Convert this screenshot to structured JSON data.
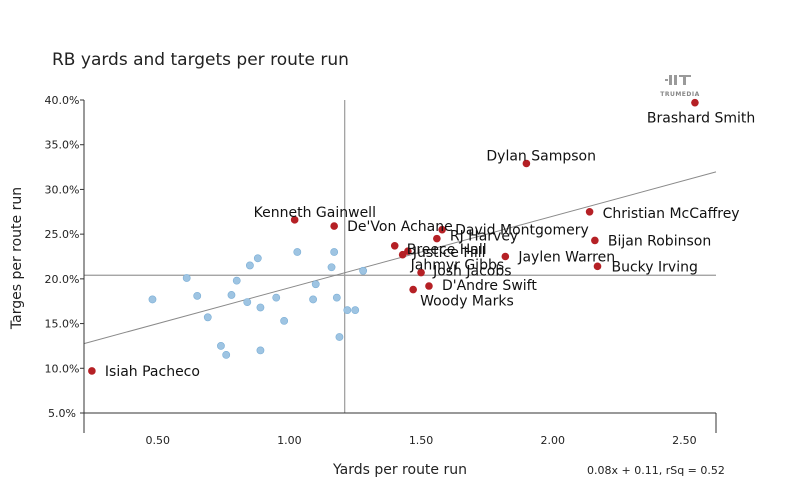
{
  "chart_data": {
    "type": "scatter",
    "title": "RB yards and targets per route run",
    "xlabel": "Yards per route run",
    "ylabel": "Targes per route run",
    "xlim": [
      0.22,
      2.62
    ],
    "ylim": [
      0.05,
      0.4
    ],
    "xticks": [
      {
        "v": 0.5,
        "label": "0.50"
      },
      {
        "v": 1.0,
        "label": "1.00"
      },
      {
        "v": 1.5,
        "label": "1.50"
      },
      {
        "v": 2.0,
        "label": "2.00"
      },
      {
        "v": 2.5,
        "label": "2.50"
      }
    ],
    "yticks": [
      {
        "v": 0.05,
        "label": "5.0%"
      },
      {
        "v": 0.1,
        "label": "10.0%"
      },
      {
        "v": 0.15,
        "label": "15.0%"
      },
      {
        "v": 0.2,
        "label": "20.0%"
      },
      {
        "v": 0.25,
        "label": "25.0%"
      },
      {
        "v": 0.3,
        "label": "30.0%"
      },
      {
        "v": 0.35,
        "label": "35.0%"
      },
      {
        "v": 0.4,
        "label": "40.0%"
      }
    ],
    "reference_lines": {
      "x_mean": 1.21,
      "y_mean": 0.204
    },
    "regression": {
      "slope": 0.08,
      "intercept": 0.11,
      "label": "0.08x + 0.11, rSq = 0.52"
    },
    "colors": {
      "highlight": "#b52025",
      "other": "#9ec4e2",
      "other_stroke": "#7aaed6",
      "axis": "#333333",
      "ref": "#9a9a9a",
      "trend": "#8a8a8a"
    },
    "highlighted": [
      {
        "name": "Brashard Smith",
        "x": 2.54,
        "y": 0.397
      },
      {
        "name": "Dylan Sampson",
        "x": 1.9,
        "y": 0.329
      },
      {
        "name": "Christian McCaffrey",
        "x": 2.14,
        "y": 0.275
      },
      {
        "name": "Bijan Robinson",
        "x": 2.16,
        "y": 0.243
      },
      {
        "name": "Bucky Irving",
        "x": 2.17,
        "y": 0.214
      },
      {
        "name": "Jaylen Warren",
        "x": 1.82,
        "y": 0.225
      },
      {
        "name": "Kenneth Gainwell",
        "x": 1.02,
        "y": 0.266
      },
      {
        "name": "De'Von Achane",
        "x": 1.17,
        "y": 0.259
      },
      {
        "name": "David Montgomery",
        "x": 1.58,
        "y": 0.255
      },
      {
        "name": "RJ Harvey",
        "x": 1.56,
        "y": 0.245
      },
      {
        "name": "Breece Hall",
        "x": 1.4,
        "y": 0.237
      },
      {
        "name": "Justice Hill",
        "x": 1.45,
        "y": 0.231
      },
      {
        "name": "Jahmyr Gibbs",
        "x": 1.43,
        "y": 0.227
      },
      {
        "name": "Josh Jacobs",
        "x": 1.5,
        "y": 0.207
      },
      {
        "name": "D'Andre Swift",
        "x": 1.53,
        "y": 0.192
      },
      {
        "name": "Woody Marks",
        "x": 1.47,
        "y": 0.188
      },
      {
        "name": "Isiah Pacheco",
        "x": 0.25,
        "y": 0.097
      }
    ],
    "others": [
      {
        "x": 0.48,
        "y": 0.177
      },
      {
        "x": 0.61,
        "y": 0.201
      },
      {
        "x": 0.65,
        "y": 0.181
      },
      {
        "x": 0.69,
        "y": 0.157
      },
      {
        "x": 0.74,
        "y": 0.125
      },
      {
        "x": 0.76,
        "y": 0.115
      },
      {
        "x": 0.78,
        "y": 0.182
      },
      {
        "x": 0.8,
        "y": 0.198
      },
      {
        "x": 0.84,
        "y": 0.174
      },
      {
        "x": 0.85,
        "y": 0.215
      },
      {
        "x": 0.88,
        "y": 0.223
      },
      {
        "x": 0.89,
        "y": 0.168
      },
      {
        "x": 0.89,
        "y": 0.12
      },
      {
        "x": 0.95,
        "y": 0.179
      },
      {
        "x": 0.98,
        "y": 0.153
      },
      {
        "x": 1.03,
        "y": 0.23
      },
      {
        "x": 1.09,
        "y": 0.177
      },
      {
        "x": 1.1,
        "y": 0.194
      },
      {
        "x": 1.16,
        "y": 0.213
      },
      {
        "x": 1.17,
        "y": 0.23
      },
      {
        "x": 1.18,
        "y": 0.179
      },
      {
        "x": 1.19,
        "y": 0.135
      },
      {
        "x": 1.22,
        "y": 0.165
      },
      {
        "x": 1.25,
        "y": 0.165
      },
      {
        "x": 1.28,
        "y": 0.209
      }
    ]
  },
  "brand": {
    "logo_text": "TRUMEDIA"
  }
}
